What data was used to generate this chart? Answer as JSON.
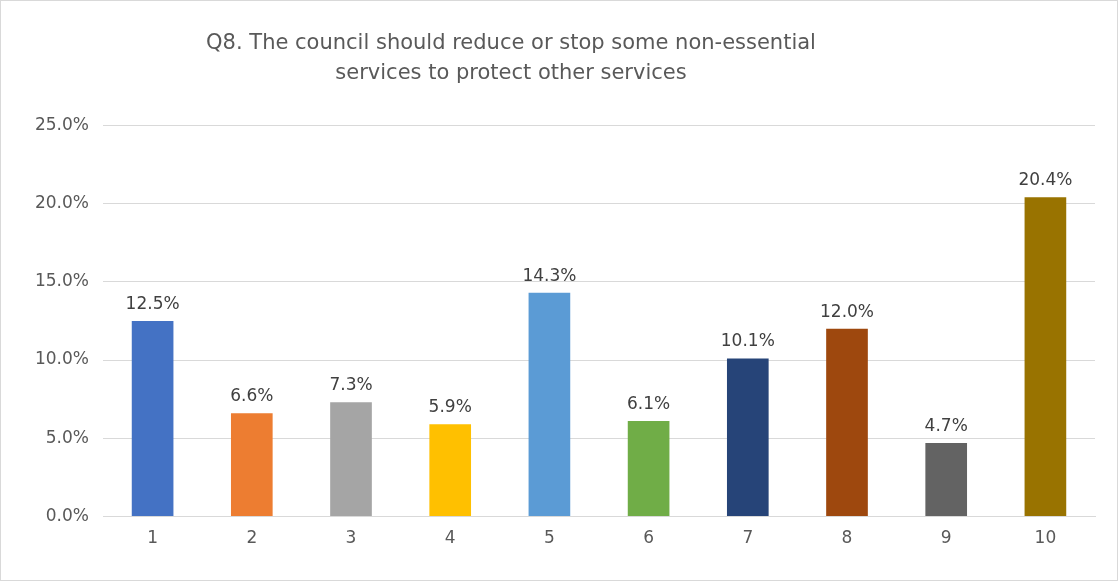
{
  "chart_data": {
    "type": "bar",
    "title": "Q8. The council should reduce or stop some non-essential services to protect other services",
    "categories": [
      "1",
      "2",
      "3",
      "4",
      "5",
      "6",
      "7",
      "8",
      "9",
      "10"
    ],
    "values": [
      12.5,
      6.6,
      7.3,
      5.9,
      14.3,
      6.1,
      10.1,
      12.0,
      4.7,
      20.4
    ],
    "colors": [
      "#4472c4",
      "#ed7d31",
      "#a5a5a5",
      "#ffc000",
      "#5b9bd5",
      "#70ad47",
      "#264478",
      "#9e480e",
      "#636363",
      "#997300"
    ],
    "value_labels": [
      "12.5%",
      "6.6%",
      "7.3%",
      "5.9%",
      "14.3%",
      "6.1%",
      "10.1%",
      "12.0%",
      "4.7%",
      "20.4%"
    ],
    "ylim": [
      0,
      25
    ],
    "yticks": [
      {
        "value": 0,
        "label": "0.0%"
      },
      {
        "value": 5,
        "label": "5.0%"
      },
      {
        "value": 10,
        "label": "10.0%"
      },
      {
        "value": 15,
        "label": "15.0%"
      },
      {
        "value": 20,
        "label": "20.0%"
      },
      {
        "value": 25,
        "label": "25.0%"
      }
    ],
    "grid": "y",
    "legend": false
  }
}
